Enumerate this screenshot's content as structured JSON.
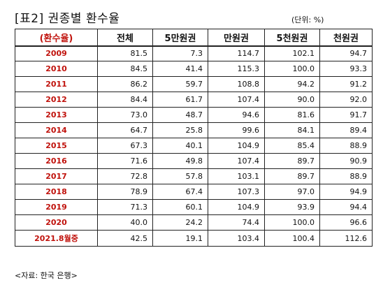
{
  "title": "[표2]  권종별  환수율",
  "unit": "(단위: %)",
  "table": {
    "headers": [
      "(환수율)",
      "전체",
      "5만원권",
      "만원권",
      "5천원권",
      "천원권"
    ],
    "rows": [
      [
        "2009",
        "81.5",
        "7.3",
        "114.7",
        "102.1",
        "94.7"
      ],
      [
        "2010",
        "84.5",
        "41.4",
        "115.3",
        "100.0",
        "93.3"
      ],
      [
        "2011",
        "86.2",
        "59.7",
        "108.8",
        "94.2",
        "91.2"
      ],
      [
        "2012",
        "84.4",
        "61.7",
        "107.4",
        "90.0",
        "92.0"
      ],
      [
        "2013",
        "73.0",
        "48.7",
        "94.6",
        "81.6",
        "91.7"
      ],
      [
        "2014",
        "64.7",
        "25.8",
        "99.6",
        "84.1",
        "89.4"
      ],
      [
        "2015",
        "67.3",
        "40.1",
        "104.9",
        "85.4",
        "88.9"
      ],
      [
        "2016",
        "71.6",
        "49.8",
        "107.4",
        "89.7",
        "90.9"
      ],
      [
        "2017",
        "72.8",
        "57.8",
        "103.1",
        "89.7",
        "88.9"
      ],
      [
        "2018",
        "78.9",
        "67.4",
        "107.3",
        "97.0",
        "94.9"
      ],
      [
        "2019",
        "71.3",
        "60.1",
        "104.9",
        "93.9",
        "94.4"
      ],
      [
        "2020",
        "40.0",
        "24.2",
        "74.4",
        "100.0",
        "96.6"
      ],
      [
        "2021.8월중",
        "42.5",
        "19.1",
        "103.4",
        "100.4",
        "112.6"
      ]
    ]
  },
  "source": "<자료: 한국 은행>",
  "colors": {
    "year_text": "#c0120c",
    "border": "#222222"
  }
}
